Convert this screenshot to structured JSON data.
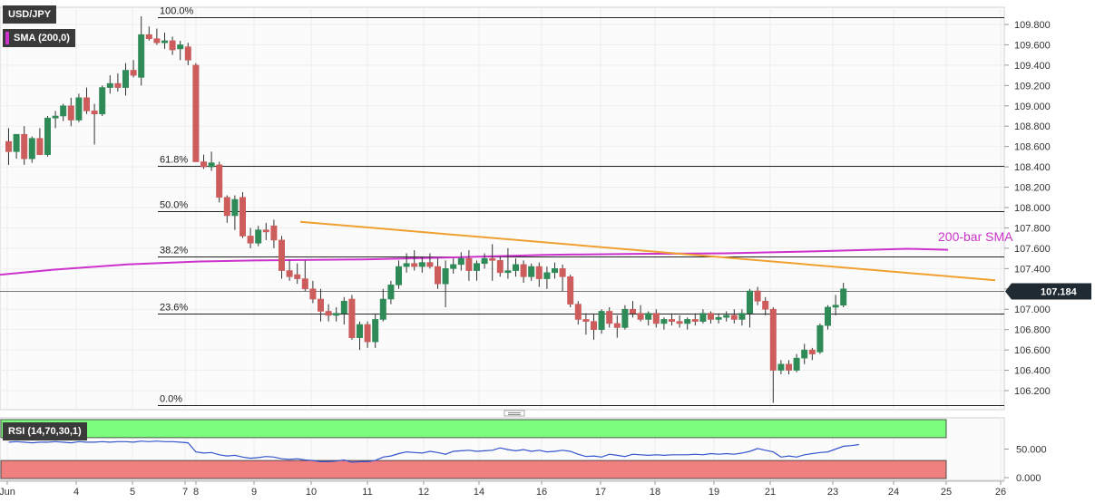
{
  "header": {
    "symbol": "USD/JPY",
    "indicator_label": "SMA (200,0)",
    "indicator_color": "#cc33cc",
    "rsi_label": "RSI (14,70,30,1)"
  },
  "colors": {
    "bull": "#2e8b57",
    "bear": "#cd5c5c",
    "sma": "#cc33cc",
    "trendline": "#f0a030",
    "rsi_line": "#3355cc",
    "rsi_overbought": "#7cfc7c",
    "rsi_oversold": "#f08080",
    "price_tag_bg": "#1f2a33"
  },
  "chart_data": [
    {
      "type": "candlestick",
      "title": "USD/JPY",
      "x_tick_labels": [
        "Jun",
        "4",
        "5",
        "7",
        "8",
        "9",
        "10",
        "11",
        "12",
        "14",
        "16",
        "17",
        "18",
        "19",
        "21",
        "23",
        "24",
        "25",
        "26"
      ],
      "y_ticks": [
        "109.800",
        "109.600",
        "109.400",
        "109.200",
        "109.000",
        "108.800",
        "108.600",
        "108.400",
        "108.200",
        "108.000",
        "107.800",
        "107.600",
        "107.400",
        "107.200",
        "107.000",
        "106.800",
        "106.600",
        "106.400",
        "106.200"
      ],
      "ylim": [
        106.0,
        109.95
      ],
      "current_price": "107.184",
      "fibonacci_levels": [
        {
          "label": "100.0%",
          "value": 109.87
        },
        {
          "label": "61.8%",
          "value": 108.41
        },
        {
          "label": "50.0%",
          "value": 107.96
        },
        {
          "label": "38.2%",
          "value": 107.52
        },
        {
          "label": "23.6%",
          "value": 106.96
        },
        {
          "label": "0.0%",
          "value": 106.06
        }
      ],
      "annotations": [
        {
          "text": "200-bar SMA"
        }
      ],
      "candles": [
        {
          "o": 108.65,
          "h": 108.78,
          "l": 108.42,
          "c": 108.55
        },
        {
          "o": 108.55,
          "h": 108.72,
          "l": 108.48,
          "c": 108.72
        },
        {
          "o": 108.72,
          "h": 108.8,
          "l": 108.42,
          "c": 108.48
        },
        {
          "o": 108.48,
          "h": 108.7,
          "l": 108.44,
          "c": 108.68
        },
        {
          "o": 108.68,
          "h": 108.78,
          "l": 108.52,
          "c": 108.52
        },
        {
          "o": 108.52,
          "h": 108.9,
          "l": 108.5,
          "c": 108.88
        },
        {
          "o": 108.88,
          "h": 108.95,
          "l": 108.78,
          "c": 108.9
        },
        {
          "o": 108.9,
          "h": 109.02,
          "l": 108.85,
          "c": 109.0
        },
        {
          "o": 109.0,
          "h": 109.08,
          "l": 108.8,
          "c": 108.86
        },
        {
          "o": 108.86,
          "h": 109.12,
          "l": 108.84,
          "c": 109.08
        },
        {
          "o": 109.08,
          "h": 109.18,
          "l": 108.92,
          "c": 108.95
        },
        {
          "o": 108.95,
          "h": 109.02,
          "l": 108.62,
          "c": 108.92
        },
        {
          "o": 108.92,
          "h": 109.2,
          "l": 108.9,
          "c": 109.18
        },
        {
          "o": 109.18,
          "h": 109.3,
          "l": 109.12,
          "c": 109.22
        },
        {
          "o": 109.22,
          "h": 109.32,
          "l": 109.14,
          "c": 109.18
        },
        {
          "o": 109.18,
          "h": 109.42,
          "l": 109.1,
          "c": 109.35
        },
        {
          "o": 109.35,
          "h": 109.45,
          "l": 109.28,
          "c": 109.3
        },
        {
          "o": 109.28,
          "h": 109.88,
          "l": 109.2,
          "c": 109.7
        },
        {
          "o": 109.7,
          "h": 109.78,
          "l": 109.64,
          "c": 109.66
        },
        {
          "o": 109.66,
          "h": 109.76,
          "l": 109.6,
          "c": 109.62
        },
        {
          "o": 109.62,
          "h": 109.72,
          "l": 109.56,
          "c": 109.64
        },
        {
          "o": 109.64,
          "h": 109.68,
          "l": 109.5,
          "c": 109.55
        },
        {
          "o": 109.56,
          "h": 109.64,
          "l": 109.45,
          "c": 109.6
        },
        {
          "o": 109.58,
          "h": 109.62,
          "l": 109.4,
          "c": 109.45
        },
        {
          "o": 109.4,
          "h": 109.42,
          "l": 108.45,
          "c": 108.45
        },
        {
          "o": 108.45,
          "h": 108.52,
          "l": 108.38,
          "c": 108.4
        },
        {
          "o": 108.4,
          "h": 108.55,
          "l": 108.36,
          "c": 108.44
        },
        {
          "o": 108.42,
          "h": 108.45,
          "l": 108.05,
          "c": 108.1
        },
        {
          "o": 108.1,
          "h": 108.12,
          "l": 107.85,
          "c": 107.92
        },
        {
          "o": 107.92,
          "h": 108.12,
          "l": 107.78,
          "c": 108.08
        },
        {
          "o": 108.1,
          "h": 108.15,
          "l": 107.7,
          "c": 107.72
        },
        {
          "o": 107.72,
          "h": 107.8,
          "l": 107.6,
          "c": 107.65
        },
        {
          "o": 107.65,
          "h": 107.82,
          "l": 107.62,
          "c": 107.78
        },
        {
          "o": 107.78,
          "h": 107.85,
          "l": 107.68,
          "c": 107.76
        },
        {
          "o": 107.82,
          "h": 107.88,
          "l": 107.6,
          "c": 107.68
        },
        {
          "o": 107.68,
          "h": 107.72,
          "l": 107.3,
          "c": 107.38
        },
        {
          "o": 107.38,
          "h": 107.48,
          "l": 107.28,
          "c": 107.32
        },
        {
          "o": 107.34,
          "h": 107.45,
          "l": 107.25,
          "c": 107.3
        },
        {
          "o": 107.3,
          "h": 107.48,
          "l": 107.18,
          "c": 107.2
        },
        {
          "o": 107.2,
          "h": 107.28,
          "l": 107.06,
          "c": 107.1
        },
        {
          "o": 107.1,
          "h": 107.2,
          "l": 106.88,
          "c": 106.98
        },
        {
          "o": 106.98,
          "h": 107.05,
          "l": 106.88,
          "c": 106.94
        },
        {
          "o": 106.94,
          "h": 107.02,
          "l": 106.88,
          "c": 106.96
        },
        {
          "o": 106.96,
          "h": 107.12,
          "l": 106.85,
          "c": 107.08
        },
        {
          "o": 107.1,
          "h": 107.14,
          "l": 106.7,
          "c": 106.72
        },
        {
          "o": 106.72,
          "h": 106.88,
          "l": 106.6,
          "c": 106.85
        },
        {
          "o": 106.85,
          "h": 106.88,
          "l": 106.62,
          "c": 106.68
        },
        {
          "o": 106.68,
          "h": 106.95,
          "l": 106.62,
          "c": 106.9
        },
        {
          "o": 106.9,
          "h": 107.2,
          "l": 106.88,
          "c": 107.1
        },
        {
          "o": 107.1,
          "h": 107.28,
          "l": 107.05,
          "c": 107.24
        },
        {
          "o": 107.24,
          "h": 107.48,
          "l": 107.2,
          "c": 107.42
        },
        {
          "o": 107.42,
          "h": 107.55,
          "l": 107.36,
          "c": 107.45
        },
        {
          "o": 107.45,
          "h": 107.58,
          "l": 107.38,
          "c": 107.42
        },
        {
          "o": 107.42,
          "h": 107.52,
          "l": 107.36,
          "c": 107.46
        },
        {
          "o": 107.46,
          "h": 107.55,
          "l": 107.4,
          "c": 107.42
        },
        {
          "o": 107.42,
          "h": 107.5,
          "l": 107.2,
          "c": 107.25
        },
        {
          "o": 107.25,
          "h": 107.48,
          "l": 107.02,
          "c": 107.4
        },
        {
          "o": 107.4,
          "h": 107.5,
          "l": 107.35,
          "c": 107.44
        },
        {
          "o": 107.44,
          "h": 107.56,
          "l": 107.38,
          "c": 107.5
        },
        {
          "o": 107.5,
          "h": 107.58,
          "l": 107.28,
          "c": 107.38
        },
        {
          "o": 107.38,
          "h": 107.48,
          "l": 107.28,
          "c": 107.45
        },
        {
          "o": 107.45,
          "h": 107.55,
          "l": 107.4,
          "c": 107.5
        },
        {
          "o": 107.5,
          "h": 107.64,
          "l": 107.28,
          "c": 107.48
        },
        {
          "o": 107.48,
          "h": 107.52,
          "l": 107.32,
          "c": 107.36
        },
        {
          "o": 107.36,
          "h": 107.6,
          "l": 107.3,
          "c": 107.38
        },
        {
          "o": 107.38,
          "h": 107.5,
          "l": 107.32,
          "c": 107.44
        },
        {
          "o": 107.44,
          "h": 107.48,
          "l": 107.26,
          "c": 107.32
        },
        {
          "o": 107.32,
          "h": 107.45,
          "l": 107.28,
          "c": 107.42
        },
        {
          "o": 107.42,
          "h": 107.46,
          "l": 107.22,
          "c": 107.3
        },
        {
          "o": 107.3,
          "h": 107.42,
          "l": 107.2,
          "c": 107.36
        },
        {
          "o": 107.36,
          "h": 107.46,
          "l": 107.3,
          "c": 107.4
        },
        {
          "o": 107.4,
          "h": 107.44,
          "l": 107.18,
          "c": 107.32
        },
        {
          "o": 107.32,
          "h": 107.34,
          "l": 107.02,
          "c": 107.05
        },
        {
          "o": 107.05,
          "h": 107.08,
          "l": 106.85,
          "c": 106.9
        },
        {
          "o": 106.9,
          "h": 106.96,
          "l": 106.75,
          "c": 106.88
        },
        {
          "o": 106.88,
          "h": 106.95,
          "l": 106.7,
          "c": 106.8
        },
        {
          "o": 106.8,
          "h": 107.0,
          "l": 106.76,
          "c": 106.98
        },
        {
          "o": 106.98,
          "h": 107.02,
          "l": 106.82,
          "c": 106.86
        },
        {
          "o": 106.86,
          "h": 106.94,
          "l": 106.72,
          "c": 106.82
        },
        {
          "o": 106.82,
          "h": 107.04,
          "l": 106.8,
          "c": 107.0
        },
        {
          "o": 107.0,
          "h": 107.08,
          "l": 106.92,
          "c": 106.96
        },
        {
          "o": 106.96,
          "h": 107.04,
          "l": 106.88,
          "c": 106.9
        },
        {
          "o": 106.9,
          "h": 106.98,
          "l": 106.84,
          "c": 106.96
        },
        {
          "o": 106.96,
          "h": 107.0,
          "l": 106.82,
          "c": 106.86
        },
        {
          "o": 106.86,
          "h": 106.92,
          "l": 106.8,
          "c": 106.9
        },
        {
          "o": 106.9,
          "h": 106.96,
          "l": 106.84,
          "c": 106.88
        },
        {
          "o": 106.88,
          "h": 106.94,
          "l": 106.82,
          "c": 106.86
        },
        {
          "o": 106.86,
          "h": 106.92,
          "l": 106.8,
          "c": 106.9
        },
        {
          "o": 106.9,
          "h": 106.96,
          "l": 106.84,
          "c": 106.88
        },
        {
          "o": 106.88,
          "h": 107.0,
          "l": 106.86,
          "c": 106.96
        },
        {
          "o": 106.96,
          "h": 106.98,
          "l": 106.86,
          "c": 106.9
        },
        {
          "o": 106.9,
          "h": 106.96,
          "l": 106.86,
          "c": 106.92
        },
        {
          "o": 106.92,
          "h": 106.98,
          "l": 106.88,
          "c": 106.94
        },
        {
          "o": 106.94,
          "h": 107.0,
          "l": 106.86,
          "c": 106.9
        },
        {
          "o": 106.9,
          "h": 107.0,
          "l": 106.84,
          "c": 106.96
        },
        {
          "o": 106.96,
          "h": 107.2,
          "l": 106.82,
          "c": 107.18
        },
        {
          "o": 107.18,
          "h": 107.22,
          "l": 107.04,
          "c": 107.08
        },
        {
          "o": 107.08,
          "h": 107.12,
          "l": 106.94,
          "c": 107.0
        },
        {
          "o": 107.0,
          "h": 107.02,
          "l": 106.08,
          "c": 106.4
        },
        {
          "o": 106.4,
          "h": 106.5,
          "l": 106.36,
          "c": 106.46
        },
        {
          "o": 106.46,
          "h": 106.5,
          "l": 106.36,
          "c": 106.4
        },
        {
          "o": 106.4,
          "h": 106.56,
          "l": 106.38,
          "c": 106.52
        },
        {
          "o": 106.52,
          "h": 106.66,
          "l": 106.46,
          "c": 106.6
        },
        {
          "o": 106.6,
          "h": 106.62,
          "l": 106.5,
          "c": 106.56
        },
        {
          "o": 106.58,
          "h": 106.86,
          "l": 106.56,
          "c": 106.84
        },
        {
          "o": 106.84,
          "h": 107.04,
          "l": 106.8,
          "c": 107.02
        },
        {
          "o": 107.02,
          "h": 107.14,
          "l": 106.94,
          "c": 107.04
        },
        {
          "o": 107.04,
          "h": 107.26,
          "l": 107.02,
          "c": 107.2
        }
      ]
    },
    {
      "type": "line",
      "title": "RSI (14,70,30,1)",
      "y_ticks": [
        "50.000",
        "0.000"
      ],
      "ylim": [
        0,
        100
      ],
      "overbought": 70,
      "oversold": 30,
      "values": [
        62,
        63,
        62,
        61,
        62,
        62,
        63,
        62,
        61,
        63,
        62,
        62,
        63,
        62,
        63,
        63,
        62,
        64,
        63,
        64,
        63,
        63,
        62,
        61,
        45,
        43,
        44,
        40,
        38,
        39,
        36,
        34,
        35,
        37,
        36,
        33,
        32,
        33,
        31,
        30,
        28,
        28,
        29,
        31,
        27,
        28,
        28,
        30,
        36,
        38,
        42,
        45,
        44,
        43,
        46,
        44,
        41,
        46,
        47,
        48,
        46,
        47,
        48,
        52,
        49,
        47,
        49,
        46,
        48,
        45,
        46,
        48,
        46,
        41,
        37,
        38,
        36,
        41,
        39,
        37,
        41,
        40,
        39,
        40,
        39,
        40,
        40,
        40,
        41,
        40,
        42,
        41,
        42,
        41,
        43,
        46,
        51,
        48,
        45,
        36,
        38,
        36,
        40,
        42,
        44,
        45,
        50,
        55,
        56,
        58
      ]
    }
  ]
}
